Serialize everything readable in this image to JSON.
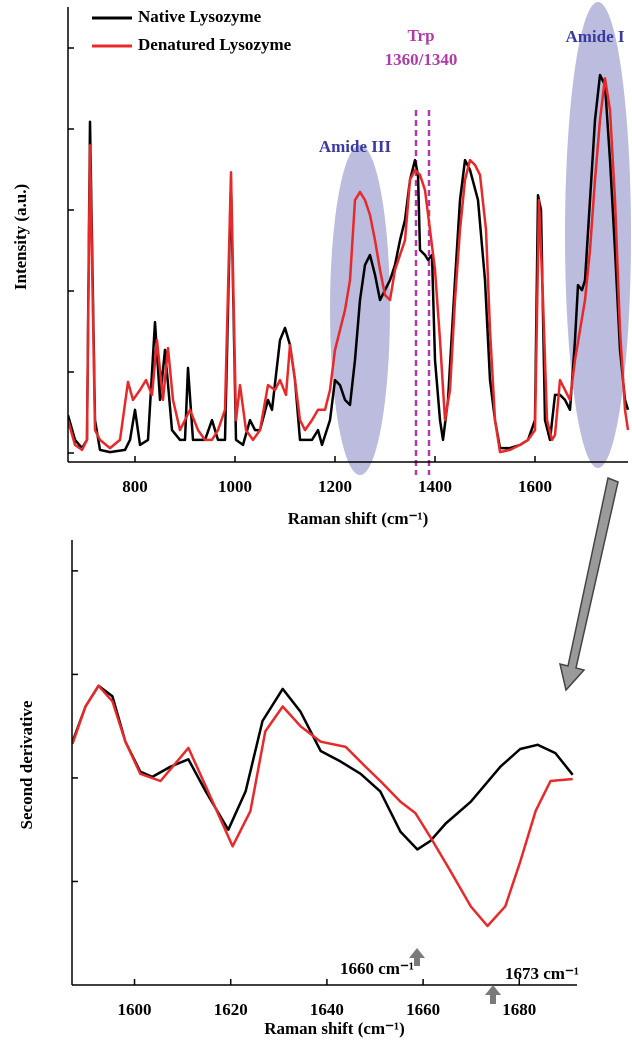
{
  "chart_data": [
    {
      "type": "line",
      "xlabel": "Raman shift (cm⁻¹)",
      "ylabel": "Intensity (a.u.)",
      "xlim": [
        666,
        1786
      ],
      "ylim": [
        0,
        100
      ],
      "xticks": [
        800,
        1000,
        1200,
        1400,
        1600
      ],
      "yticks": [
        2,
        20,
        38,
        56,
        74,
        92
      ],
      "legend": "upper left",
      "annotations": [
        "Amide III",
        "Amide I",
        "Trp",
        "1360/1340"
      ],
      "series": [
        {
          "name": "Native Lysozyme",
          "color": "#000000",
          "x": [
            666,
            680,
            694,
            704,
            710,
            720,
            730,
            750,
            780,
            790,
            800,
            810,
            826,
            840,
            850,
            860,
            874,
            890,
            900,
            906,
            916,
            926,
            940,
            954,
            966,
            980,
            992,
            1002,
            1016,
            1030,
            1040,
            1050,
            1066,
            1074,
            1090,
            1100,
            1110,
            1120,
            1130,
            1140,
            1154,
            1166,
            1174,
            1190,
            1200,
            1210,
            1220,
            1230,
            1240,
            1250,
            1260,
            1270,
            1280,
            1290,
            1300,
            1310,
            1320,
            1330,
            1340,
            1350,
            1360,
            1366,
            1370,
            1380,
            1386,
            1394,
            1400,
            1410,
            1416,
            1426,
            1440,
            1450,
            1460,
            1470,
            1486,
            1500,
            1510,
            1520,
            1530,
            1550,
            1570,
            1586,
            1600,
            1606,
            1612,
            1620,
            1630,
            1640,
            1650,
            1660,
            1670,
            1680,
            1686,
            1694,
            1700,
            1710,
            1720,
            1730,
            1740,
            1750,
            1760,
            1770,
            1780,
            1786
          ],
          "values": [
            10.4,
            4.9,
            3.1,
            4.9,
            75.6,
            9.3,
            2.7,
            2.2,
            2.7,
            4.9,
            11.6,
            3.8,
            4.9,
            31.1,
            13.8,
            24.9,
            7.1,
            4.9,
            4.9,
            20.9,
            4.9,
            4.9,
            4.9,
            9.3,
            4.9,
            4.9,
            62.7,
            4.9,
            3.8,
            9.3,
            7.1,
            7.1,
            13.8,
            11.6,
            27.1,
            29.8,
            26.0,
            18.2,
            4.9,
            4.9,
            4.9,
            7.1,
            3.8,
            9.3,
            18.2,
            17.1,
            13.8,
            12.7,
            22.7,
            36.0,
            43.8,
            46.0,
            41.6,
            36.0,
            38.2,
            40.4,
            43.8,
            49.3,
            53.8,
            62.7,
            67.1,
            63.8,
            47.1,
            46.0,
            44.9,
            46.0,
            22.7,
            9.3,
            4.9,
            13.8,
            40.4,
            58.2,
            67.1,
            64.9,
            58.2,
            40.4,
            18.2,
            9.3,
            3.1,
            3.1,
            3.8,
            4.9,
            9.3,
            59.3,
            56.0,
            9.3,
            4.9,
            14.9,
            14.9,
            13.8,
            11.6,
            27.1,
            39.3,
            38.2,
            40.4,
            58.2,
            76.0,
            86.0,
            83.8,
            67.1,
            47.1,
            24.9,
            13.8,
            11.6
          ]
        },
        {
          "name": "Denatured Lysozyme",
          "color": "#e8292a",
          "x": [
            666,
            680,
            694,
            704,
            710,
            720,
            730,
            750,
            770,
            786,
            796,
            810,
            822,
            834,
            844,
            856,
            866,
            876,
            890,
            900,
            910,
            926,
            940,
            954,
            966,
            980,
            992,
            1002,
            1010,
            1022,
            1036,
            1050,
            1066,
            1080,
            1090,
            1102,
            1110,
            1120,
            1130,
            1140,
            1154,
            1166,
            1180,
            1190,
            1200,
            1210,
            1220,
            1230,
            1240,
            1250,
            1260,
            1270,
            1280,
            1290,
            1300,
            1310,
            1320,
            1330,
            1340,
            1350,
            1360,
            1370,
            1380,
            1390,
            1400,
            1410,
            1420,
            1430,
            1440,
            1450,
            1460,
            1470,
            1480,
            1490,
            1502,
            1510,
            1520,
            1530,
            1550,
            1570,
            1586,
            1600,
            1608,
            1616,
            1624,
            1634,
            1640,
            1650,
            1660,
            1670,
            1680,
            1690,
            1700,
            1710,
            1720,
            1730,
            1740,
            1750,
            1760,
            1770,
            1780,
            1786
          ],
          "values": [
            9.3,
            3.8,
            2.7,
            4.9,
            70.4,
            7.1,
            4.9,
            3.1,
            4.9,
            17.8,
            13.8,
            16.0,
            18.2,
            14.9,
            27.1,
            13.8,
            25.3,
            13.8,
            7.1,
            9.3,
            11.6,
            7.1,
            4.9,
            4.9,
            7.1,
            11.6,
            64.4,
            9.3,
            17.1,
            7.1,
            4.9,
            7.1,
            17.1,
            16.0,
            18.2,
            14.9,
            26.0,
            18.2,
            9.3,
            7.1,
            9.3,
            11.6,
            11.6,
            16.0,
            24.9,
            29.3,
            33.8,
            40.4,
            58.2,
            60.0,
            58.2,
            54.9,
            49.3,
            42.7,
            37.1,
            36.0,
            42.7,
            46.0,
            49.3,
            62.7,
            64.9,
            63.8,
            60.4,
            51.6,
            42.7,
            27.1,
            9.3,
            16.0,
            36.0,
            51.6,
            62.7,
            67.1,
            66.0,
            63.8,
            51.6,
            29.3,
            9.3,
            2.2,
            2.7,
            3.8,
            4.9,
            7.1,
            58.2,
            36.0,
            9.3,
            4.9,
            6.0,
            18.2,
            16.0,
            13.8,
            22.7,
            29.3,
            36.0,
            47.1,
            62.7,
            76.0,
            85.3,
            78.2,
            58.2,
            29.3,
            11.6,
            7.1
          ]
        }
      ]
    },
    {
      "type": "line",
      "xlabel": "Raman shift (cm⁻¹)",
      "ylabel": "Second derivative",
      "xlim": [
        1587,
        1692
      ],
      "ylim": [
        -1,
        3.25
      ],
      "xticks": [
        1600,
        1620,
        1640,
        1660,
        1680
      ],
      "yticks": [
        0,
        1,
        2,
        3
      ],
      "annotations": [
        "1660 cm⁻¹",
        "1673 cm⁻¹"
      ],
      "series": [
        {
          "color": "#000000",
          "x": [
            1587.1,
            1589.8,
            1592.5,
            1595.4,
            1598.1,
            1601.2,
            1603.7,
            1607.5,
            1611.2,
            1614.8,
            1619.5,
            1623.1,
            1626.6,
            1630.8,
            1634.5,
            1638.7,
            1642.8,
            1647.0,
            1651.1,
            1655.3,
            1658.8,
            1661.5,
            1664.7,
            1669.9,
            1676.1,
            1680.2,
            1683.8,
            1687.5,
            1691.1
          ],
          "values": [
            1.35,
            1.69,
            1.89,
            1.79,
            1.35,
            1.06,
            1.01,
            1.11,
            1.18,
            0.87,
            0.5,
            0.87,
            1.55,
            1.86,
            1.64,
            1.26,
            1.16,
            1.04,
            0.87,
            0.48,
            0.31,
            0.39,
            0.56,
            0.77,
            1.11,
            1.28,
            1.32,
            1.24,
            1.03
          ]
        },
        {
          "color": "#e8292a",
          "x": [
            1587.1,
            1589.8,
            1592.5,
            1595.4,
            1598.1,
            1601.2,
            1605.4,
            1608.5,
            1611.2,
            1614.8,
            1620.4,
            1624.1,
            1627.2,
            1630.8,
            1634.5,
            1638.7,
            1643.9,
            1648.0,
            1651.1,
            1655.3,
            1658.4,
            1661.5,
            1665.7,
            1669.9,
            1673.4,
            1677.1,
            1680.2,
            1683.4,
            1686.5,
            1691.1
          ],
          "values": [
            1.33,
            1.69,
            1.89,
            1.74,
            1.35,
            1.04,
            0.97,
            1.14,
            1.29,
            0.92,
            0.34,
            0.68,
            1.45,
            1.69,
            1.5,
            1.35,
            1.3,
            1.11,
            0.97,
            0.77,
            0.66,
            0.43,
            0.1,
            -0.24,
            -0.43,
            -0.24,
            0.19,
            0.68,
            0.97,
            0.99
          ]
        }
      ]
    }
  ]
}
